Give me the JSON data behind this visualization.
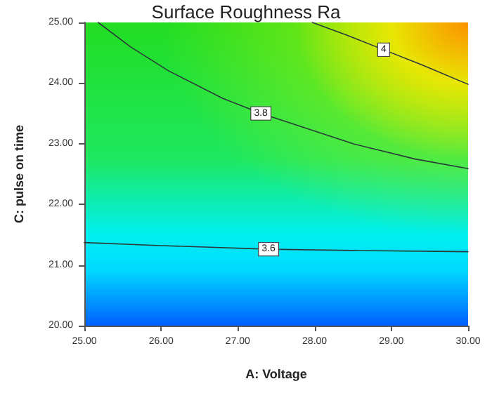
{
  "chart_data": {
    "type": "line",
    "title": "Surface Roughness Ra",
    "xlabel": "A: Voltage",
    "ylabel": "C: pulse on time",
    "xlim": [
      25,
      30
    ],
    "ylim": [
      20,
      25
    ],
    "xticks": [
      {
        "value": 25,
        "label": "25.00"
      },
      {
        "value": 26,
        "label": "26.00"
      },
      {
        "value": 27,
        "label": "27.00"
      },
      {
        "value": 28,
        "label": "28.00"
      },
      {
        "value": 29,
        "label": "29.00"
      },
      {
        "value": 30,
        "label": "30.00"
      }
    ],
    "yticks": [
      {
        "value": 20,
        "label": "20.00"
      },
      {
        "value": 21,
        "label": "21.00"
      },
      {
        "value": 22,
        "label": "22.00"
      },
      {
        "value": 23,
        "label": "23.00"
      },
      {
        "value": 24,
        "label": "24.00"
      },
      {
        "value": 25,
        "label": "25.00"
      }
    ],
    "series": [
      {
        "name": "3.6",
        "color": "#2a3a3a",
        "x": [
          25,
          26,
          27.4,
          28.5,
          30
        ],
        "values": [
          21.37,
          21.32,
          21.26,
          21.24,
          21.22
        ]
      },
      {
        "name": "3.8",
        "color": "#2a3a3a",
        "x": [
          25.18,
          25.6,
          26.1,
          26.8,
          27.3,
          28.5,
          29.3,
          30
        ],
        "values": [
          25,
          24.6,
          24.2,
          23.75,
          23.5,
          23.0,
          22.75,
          22.59
        ]
      },
      {
        "name": "4",
        "color": "#2a3a3a",
        "x": [
          27.97,
          28.4,
          28.9,
          29.4,
          30
        ],
        "values": [
          25,
          24.8,
          24.55,
          24.3,
          23.98
        ]
      }
    ],
    "grid": false,
    "legend": false,
    "marker": "none",
    "line_style": "solid"
  }
}
